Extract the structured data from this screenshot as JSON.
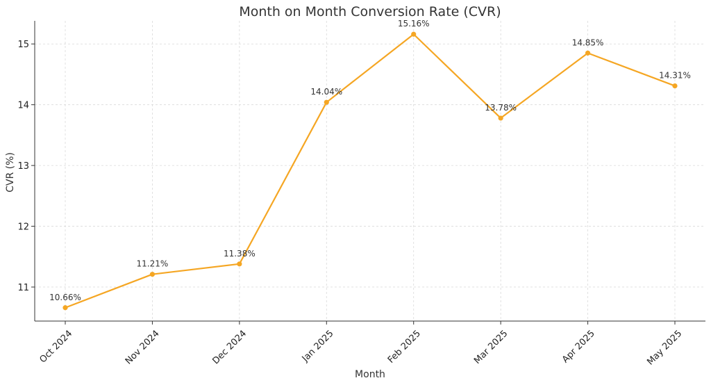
{
  "chart_data": {
    "type": "line",
    "title": "Month on Month Conversion Rate (CVR)",
    "xlabel": "Month",
    "ylabel": "CVR (%)",
    "categories": [
      "Oct 2024",
      "Nov 2024",
      "Dec 2024",
      "Jan 2025",
      "Feb 2025",
      "Mar 2025",
      "Apr 2025",
      "May 2025"
    ],
    "series": [
      {
        "values": [
          10.66,
          11.21,
          11.38,
          14.04,
          15.16,
          13.78,
          14.85,
          14.31
        ],
        "color": "#f5a623",
        "marker": "circle"
      }
    ],
    "data_labels": [
      "10.66%",
      "11.21%",
      "11.38%",
      "14.04%",
      "15.16%",
      "13.78%",
      "14.85%",
      "14.31%"
    ],
    "yticks": [
      11,
      12,
      13,
      14,
      15
    ],
    "ylim": [
      10.44,
      15.38
    ],
    "grid": true,
    "legend": "none"
  }
}
